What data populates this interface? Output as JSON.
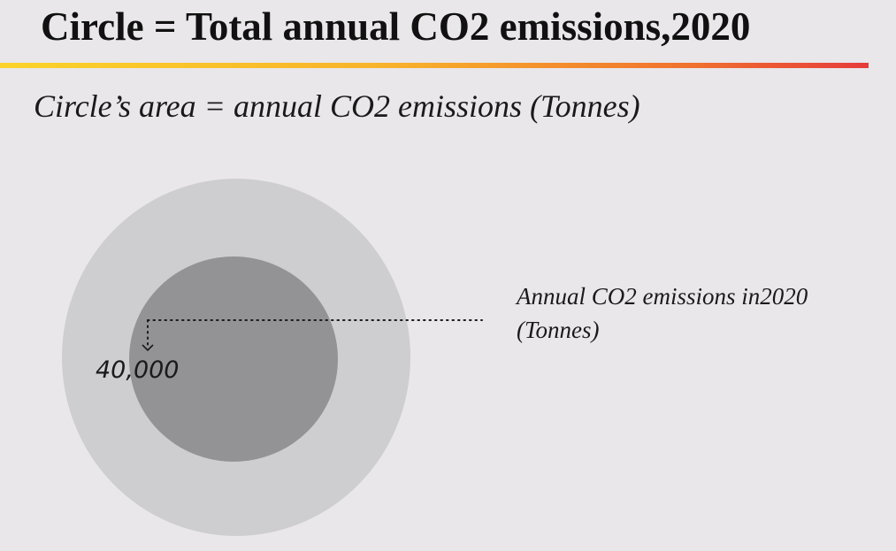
{
  "header": {
    "title": "Circle = Total annual CO2 emissions,2020",
    "subtitle": "Circle’s area = annual CO2 emissions (Tonnes)"
  },
  "legend": {
    "reference_value_label": "40,000",
    "caption_line1": "Annual CO2 emissions in2020",
    "caption_line2": "(Tonnes)"
  },
  "colors": {
    "background": "#e9e7ea",
    "outer_circle": "#cecdcf",
    "inner_circle": "#939396",
    "accent_gradient": [
      "#fbd32a",
      "#f8b22a",
      "#f0702f",
      "#e63b3a"
    ]
  }
}
